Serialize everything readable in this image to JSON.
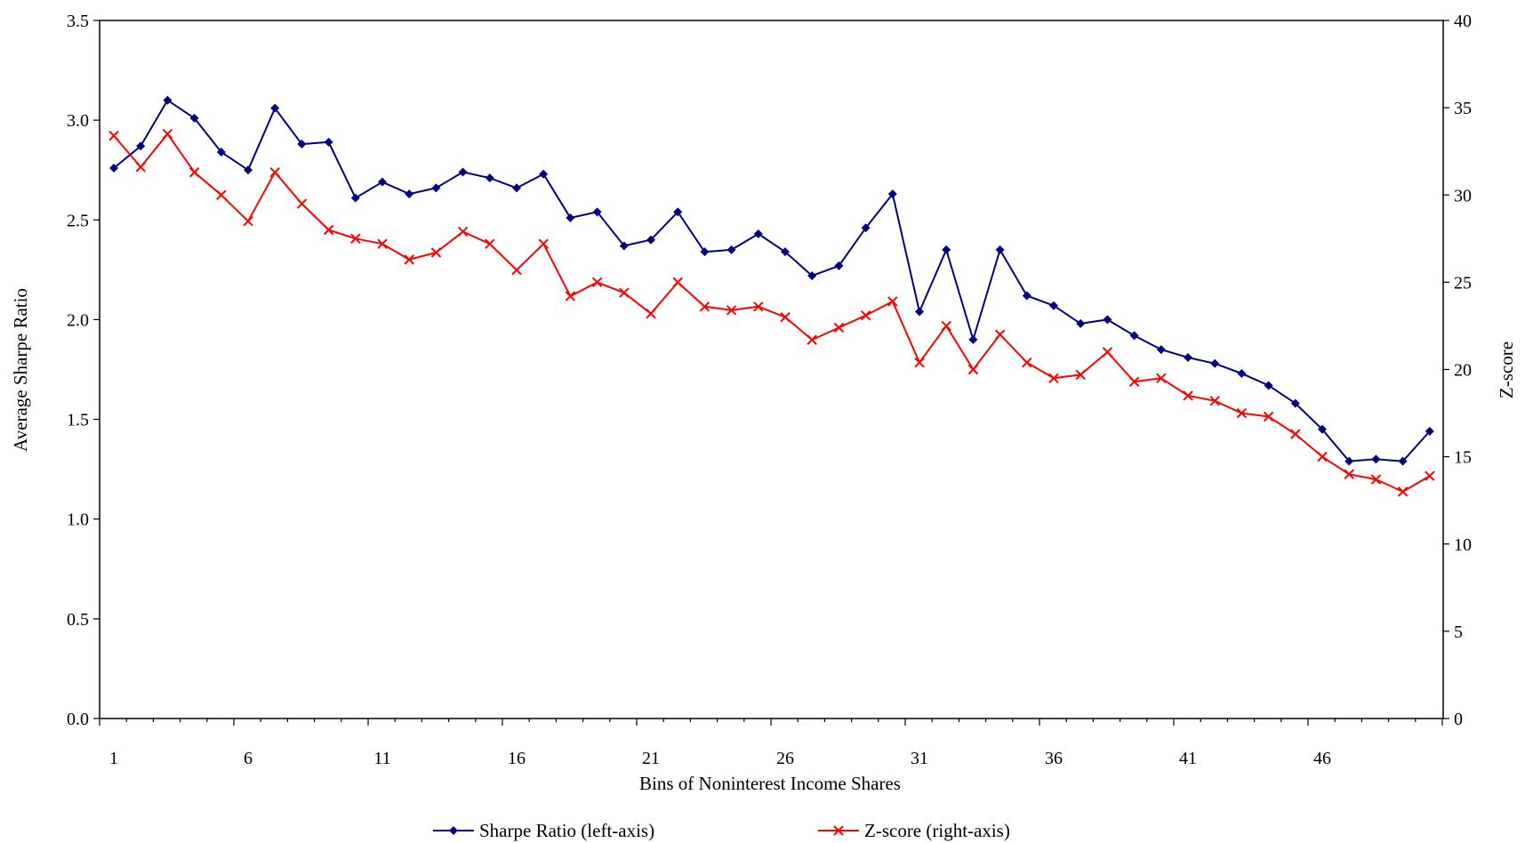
{
  "chart_data": {
    "type": "line",
    "xlabel": "Bins of Noninterest Income Shares",
    "ylabel_left": "Average Sharpe Ratio",
    "ylabel_right": "Z-score",
    "x": [
      1,
      2,
      3,
      4,
      5,
      6,
      7,
      8,
      9,
      10,
      11,
      12,
      13,
      14,
      15,
      16,
      17,
      18,
      19,
      20,
      21,
      22,
      23,
      24,
      25,
      26,
      27,
      28,
      29,
      30,
      31,
      32,
      33,
      34,
      35,
      36,
      37,
      38,
      39,
      40,
      41,
      42,
      43,
      44,
      45,
      46,
      47,
      48,
      49,
      50
    ],
    "x_tick_labels": [
      "1",
      "6",
      "11",
      "16",
      "21",
      "26",
      "31",
      "36",
      "41",
      "46"
    ],
    "y_left_ticks": [
      "0.0",
      "0.5",
      "1.0",
      "1.5",
      "2.0",
      "2.5",
      "3.0",
      "3.5"
    ],
    "y_right_ticks": [
      "0",
      "5",
      "10",
      "15",
      "20",
      "25",
      "30",
      "35",
      "40"
    ],
    "ylim_left": [
      0,
      3.5
    ],
    "ylim_right": [
      0,
      40
    ],
    "legend_position": "bottom",
    "grid": false,
    "series": [
      {
        "name": "Sharpe Ratio (left-axis)",
        "axis": "left",
        "color": "#000080",
        "marker": "diamond",
        "values": [
          2.76,
          2.87,
          3.1,
          3.01,
          2.84,
          2.75,
          3.06,
          2.88,
          2.89,
          2.61,
          2.69,
          2.63,
          2.66,
          2.74,
          2.71,
          2.66,
          2.73,
          2.51,
          2.54,
          2.37,
          2.4,
          2.54,
          2.34,
          2.35,
          2.43,
          2.34,
          2.22,
          2.27,
          2.46,
          2.63,
          2.04,
          2.35,
          1.9,
          2.35,
          2.12,
          2.07,
          1.98,
          2.0,
          1.92,
          1.85,
          1.81,
          1.78,
          1.73,
          1.67,
          1.58,
          1.45,
          1.29,
          1.3,
          1.29,
          1.44
        ]
      },
      {
        "name": "Z-score (right-axis)",
        "axis": "right",
        "color": "#ff0000",
        "marker": "x",
        "values": [
          33.4,
          31.6,
          33.5,
          31.3,
          30.0,
          28.5,
          31.3,
          29.5,
          28.0,
          27.5,
          27.2,
          26.3,
          26.7,
          27.9,
          27.2,
          25.7,
          27.2,
          24.2,
          25.0,
          24.4,
          23.2,
          25.0,
          23.6,
          23.4,
          23.6,
          23.0,
          21.7,
          22.4,
          23.1,
          23.9,
          20.4,
          22.5,
          20.0,
          22.0,
          20.4,
          19.5,
          19.7,
          21.0,
          19.3,
          19.5,
          18.5,
          18.2,
          17.5,
          17.3,
          16.3,
          15.0,
          14.0,
          13.7,
          13.0,
          13.9
        ]
      }
    ]
  }
}
